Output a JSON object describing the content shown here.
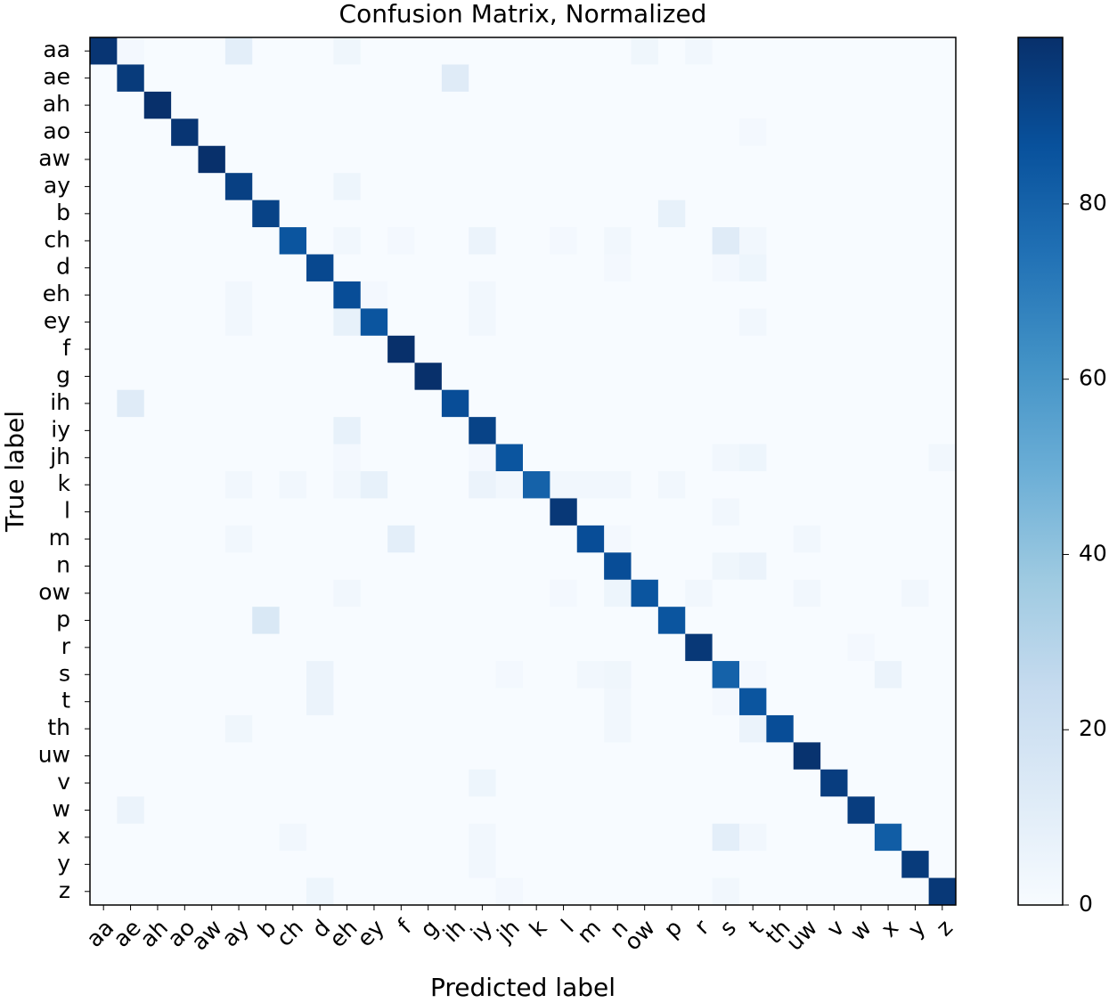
{
  "chart_data": {
    "type": "heatmap",
    "title": "Confusion Matrix, Normalized",
    "xlabel": "Predicted label",
    "ylabel": "True label",
    "x_categories": [
      "aa",
      "ae",
      "ah",
      "ao",
      "aw",
      "ay",
      "b",
      "ch",
      "d",
      "eh",
      "ey",
      "f",
      "g",
      "ih",
      "iy",
      "jh",
      "k",
      "l",
      "m",
      "n",
      "ow",
      "p",
      "r",
      "s",
      "t",
      "th",
      "uw",
      "v",
      "w",
      "x",
      "y",
      "z"
    ],
    "y_categories": [
      "aa",
      "ae",
      "ah",
      "ao",
      "aw",
      "ay",
      "b",
      "ch",
      "d",
      "eh",
      "ey",
      "f",
      "g",
      "ih",
      "iy",
      "jh",
      "k",
      "l",
      "m",
      "n",
      "ow",
      "p",
      "r",
      "s",
      "t",
      "th",
      "uw",
      "v",
      "w",
      "x",
      "y",
      "z"
    ],
    "colormap": [
      "#f7fbff",
      "#deebf7",
      "#c6dbef",
      "#9ecae1",
      "#6baed6",
      "#4292c6",
      "#2171b5",
      "#08519c",
      "#08306b"
    ],
    "clim": [
      0,
      99
    ],
    "cticks": [
      0,
      20,
      40,
      60,
      80
    ],
    "z": [
      [
        97,
        2,
        0,
        0,
        0,
        10,
        0,
        0,
        0,
        4,
        0,
        0,
        0,
        0,
        0,
        0,
        0,
        0,
        0,
        0,
        4,
        0,
        3,
        0,
        0,
        0,
        0,
        0,
        0,
        0,
        0,
        0
      ],
      [
        0,
        95,
        0,
        0,
        0,
        0,
        0,
        0,
        0,
        0,
        0,
        0,
        0,
        12,
        0,
        0,
        0,
        0,
        0,
        0,
        0,
        0,
        0,
        0,
        0,
        0,
        0,
        0,
        0,
        0,
        0,
        0
      ],
      [
        0,
        0,
        99,
        0,
        0,
        0,
        0,
        0,
        0,
        0,
        0,
        0,
        0,
        0,
        0,
        0,
        0,
        0,
        0,
        0,
        0,
        0,
        0,
        0,
        0,
        0,
        0,
        0,
        0,
        0,
        0,
        0
      ],
      [
        0,
        0,
        0,
        97,
        0,
        0,
        0,
        0,
        0,
        0,
        0,
        0,
        0,
        0,
        0,
        0,
        0,
        0,
        0,
        0,
        0,
        0,
        0,
        0,
        2,
        0,
        0,
        0,
        0,
        0,
        0,
        0
      ],
      [
        0,
        0,
        0,
        0,
        99,
        0,
        0,
        0,
        0,
        0,
        0,
        0,
        0,
        0,
        0,
        0,
        0,
        0,
        0,
        0,
        0,
        0,
        0,
        0,
        0,
        0,
        0,
        0,
        0,
        0,
        0,
        0
      ],
      [
        0,
        0,
        0,
        0,
        0,
        93,
        0,
        0,
        0,
        5,
        0,
        0,
        0,
        0,
        0,
        0,
        0,
        0,
        0,
        0,
        0,
        0,
        0,
        0,
        0,
        0,
        0,
        0,
        0,
        0,
        0,
        0
      ],
      [
        0,
        0,
        0,
        0,
        0,
        0,
        92,
        0,
        0,
        0,
        0,
        0,
        0,
        0,
        0,
        0,
        0,
        0,
        0,
        0,
        0,
        8,
        0,
        0,
        0,
        0,
        0,
        0,
        0,
        0,
        0,
        0
      ],
      [
        0,
        0,
        0,
        0,
        0,
        0,
        0,
        85,
        0,
        3,
        0,
        2,
        0,
        0,
        6,
        0,
        0,
        2,
        0,
        3,
        0,
        0,
        0,
        12,
        3,
        0,
        0,
        0,
        0,
        0,
        0,
        0
      ],
      [
        0,
        0,
        0,
        0,
        0,
        0,
        0,
        0,
        90,
        0,
        0,
        0,
        0,
        0,
        0,
        0,
        0,
        0,
        0,
        2,
        0,
        0,
        0,
        2,
        5,
        0,
        0,
        0,
        0,
        0,
        0,
        0
      ],
      [
        0,
        0,
        0,
        0,
        0,
        3,
        0,
        0,
        0,
        88,
        2,
        0,
        0,
        0,
        3,
        0,
        0,
        0,
        0,
        0,
        0,
        0,
        0,
        0,
        0,
        0,
        0,
        0,
        0,
        0,
        0,
        0
      ],
      [
        0,
        0,
        0,
        0,
        0,
        3,
        0,
        0,
        0,
        8,
        85,
        0,
        0,
        0,
        3,
        0,
        0,
        0,
        0,
        0,
        0,
        0,
        0,
        0,
        3,
        0,
        0,
        0,
        0,
        0,
        0,
        0
      ],
      [
        0,
        0,
        0,
        0,
        0,
        0,
        0,
        0,
        0,
        0,
        0,
        99,
        0,
        0,
        0,
        0,
        0,
        0,
        0,
        0,
        0,
        0,
        0,
        0,
        0,
        0,
        0,
        0,
        0,
        0,
        0,
        0
      ],
      [
        0,
        0,
        0,
        0,
        0,
        0,
        0,
        0,
        0,
        0,
        0,
        0,
        99,
        0,
        0,
        0,
        0,
        0,
        0,
        0,
        0,
        0,
        0,
        0,
        0,
        0,
        0,
        0,
        0,
        0,
        0,
        0
      ],
      [
        0,
        12,
        0,
        0,
        0,
        0,
        0,
        0,
        0,
        0,
        0,
        0,
        0,
        88,
        0,
        0,
        0,
        0,
        0,
        0,
        0,
        0,
        0,
        0,
        0,
        0,
        0,
        0,
        0,
        0,
        0,
        0
      ],
      [
        0,
        0,
        0,
        0,
        0,
        0,
        0,
        0,
        0,
        8,
        0,
        0,
        0,
        0,
        92,
        0,
        0,
        0,
        0,
        0,
        0,
        0,
        0,
        0,
        0,
        0,
        0,
        0,
        0,
        0,
        0,
        0
      ],
      [
        0,
        0,
        0,
        0,
        0,
        0,
        0,
        0,
        0,
        2,
        0,
        0,
        0,
        0,
        2,
        85,
        0,
        0,
        0,
        0,
        0,
        0,
        0,
        3,
        5,
        0,
        0,
        0,
        0,
        0,
        0,
        3
      ],
      [
        0,
        0,
        0,
        0,
        0,
        3,
        0,
        3,
        0,
        3,
        8,
        0,
        0,
        0,
        6,
        3,
        80,
        3,
        3,
        3,
        0,
        3,
        0,
        0,
        0,
        0,
        0,
        0,
        0,
        0,
        0,
        0
      ],
      [
        0,
        0,
        0,
        0,
        0,
        0,
        0,
        0,
        0,
        0,
        0,
        0,
        0,
        0,
        0,
        0,
        0,
        96,
        0,
        0,
        0,
        0,
        0,
        3,
        0,
        0,
        0,
        0,
        0,
        0,
        0,
        0
      ],
      [
        0,
        0,
        0,
        0,
        0,
        3,
        0,
        0,
        0,
        0,
        0,
        10,
        0,
        0,
        0,
        0,
        0,
        0,
        88,
        2,
        0,
        0,
        0,
        0,
        0,
        0,
        3,
        0,
        0,
        0,
        0,
        0
      ],
      [
        0,
        0,
        0,
        0,
        0,
        0,
        0,
        0,
        0,
        0,
        0,
        0,
        0,
        0,
        0,
        0,
        0,
        0,
        0,
        88,
        0,
        0,
        0,
        4,
        6,
        0,
        0,
        0,
        0,
        0,
        0,
        0
      ],
      [
        0,
        0,
        0,
        0,
        0,
        0,
        0,
        0,
        0,
        3,
        0,
        0,
        0,
        0,
        0,
        0,
        0,
        2,
        0,
        5,
        85,
        0,
        3,
        0,
        0,
        0,
        3,
        0,
        0,
        0,
        3,
        0
      ],
      [
        0,
        0,
        0,
        0,
        0,
        0,
        15,
        0,
        0,
        0,
        0,
        0,
        0,
        0,
        0,
        0,
        0,
        0,
        0,
        0,
        0,
        85,
        0,
        0,
        0,
        0,
        0,
        0,
        0,
        0,
        0,
        0
      ],
      [
        0,
        0,
        0,
        0,
        0,
        0,
        0,
        0,
        0,
        0,
        0,
        0,
        0,
        0,
        0,
        0,
        0,
        0,
        0,
        0,
        0,
        0,
        96,
        0,
        0,
        0,
        0,
        0,
        2,
        0,
        0,
        0
      ],
      [
        0,
        0,
        0,
        0,
        0,
        0,
        0,
        0,
        6,
        0,
        0,
        0,
        0,
        0,
        0,
        2,
        0,
        0,
        3,
        4,
        0,
        0,
        0,
        80,
        2,
        0,
        0,
        0,
        0,
        6,
        0,
        0
      ],
      [
        0,
        0,
        0,
        0,
        0,
        0,
        0,
        0,
        6,
        0,
        0,
        0,
        0,
        0,
        0,
        0,
        0,
        0,
        0,
        3,
        0,
        0,
        0,
        2,
        85,
        0,
        0,
        0,
        0,
        0,
        0,
        0
      ],
      [
        0,
        0,
        0,
        0,
        0,
        4,
        0,
        0,
        0,
        0,
        0,
        0,
        0,
        0,
        0,
        0,
        0,
        0,
        0,
        3,
        0,
        0,
        0,
        0,
        6,
        88,
        0,
        0,
        0,
        0,
        0,
        0
      ],
      [
        0,
        0,
        0,
        0,
        0,
        0,
        0,
        0,
        0,
        0,
        0,
        0,
        0,
        0,
        0,
        0,
        0,
        0,
        0,
        0,
        0,
        0,
        0,
        0,
        0,
        0,
        98,
        0,
        0,
        0,
        0,
        0
      ],
      [
        0,
        0,
        0,
        0,
        0,
        0,
        0,
        0,
        0,
        0,
        0,
        0,
        0,
        0,
        5,
        0,
        0,
        0,
        0,
        0,
        0,
        0,
        0,
        0,
        0,
        0,
        0,
        94,
        0,
        0,
        0,
        0
      ],
      [
        0,
        6,
        0,
        0,
        0,
        0,
        0,
        0,
        0,
        0,
        0,
        0,
        0,
        0,
        0,
        0,
        0,
        0,
        0,
        0,
        0,
        0,
        0,
        0,
        0,
        0,
        0,
        0,
        94,
        0,
        0,
        0
      ],
      [
        0,
        0,
        0,
        0,
        0,
        0,
        0,
        3,
        0,
        0,
        0,
        0,
        0,
        0,
        3,
        0,
        0,
        0,
        0,
        0,
        0,
        0,
        0,
        10,
        3,
        0,
        0,
        0,
        0,
        82,
        0,
        0
      ],
      [
        0,
        0,
        0,
        0,
        0,
        0,
        0,
        0,
        0,
        0,
        0,
        0,
        0,
        0,
        3,
        0,
        0,
        0,
        0,
        0,
        0,
        0,
        0,
        0,
        0,
        0,
        0,
        0,
        0,
        0,
        95,
        0
      ],
      [
        0,
        0,
        0,
        0,
        0,
        0,
        0,
        0,
        5,
        0,
        0,
        0,
        0,
        0,
        0,
        2,
        0,
        0,
        0,
        0,
        0,
        0,
        0,
        3,
        0,
        0,
        0,
        0,
        0,
        0,
        0,
        96
      ]
    ]
  }
}
